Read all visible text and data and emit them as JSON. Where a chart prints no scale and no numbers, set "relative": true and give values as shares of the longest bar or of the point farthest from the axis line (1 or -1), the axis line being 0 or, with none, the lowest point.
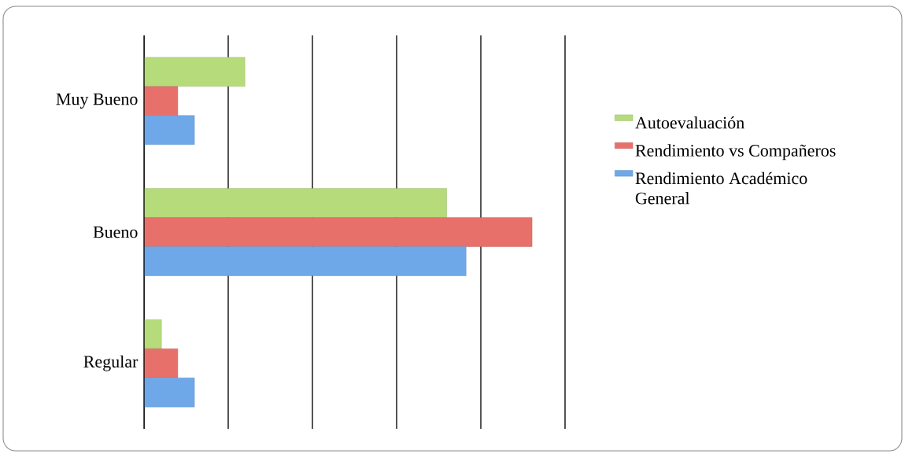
{
  "chart_data": {
    "type": "bar",
    "orientation": "horizontal",
    "relative": true,
    "categories": [
      "Muy Bueno",
      "Bueno",
      "Regular"
    ],
    "series": [
      {
        "name": "Autoevaluación",
        "color": "#b5db7a",
        "values": [
          0.26,
          0.78,
          0.045
        ]
      },
      {
        "name": "Rendimiento vs Compañeros",
        "color": "#e8706a",
        "values": [
          0.087,
          1,
          0.087
        ]
      },
      {
        "name": "Rendimiento Académico General",
        "color": "#6fa8e8",
        "values": [
          0.13,
          0.83,
          0.13
        ]
      }
    ],
    "grid": "x",
    "legend": "right",
    "tick_labels": "y"
  }
}
